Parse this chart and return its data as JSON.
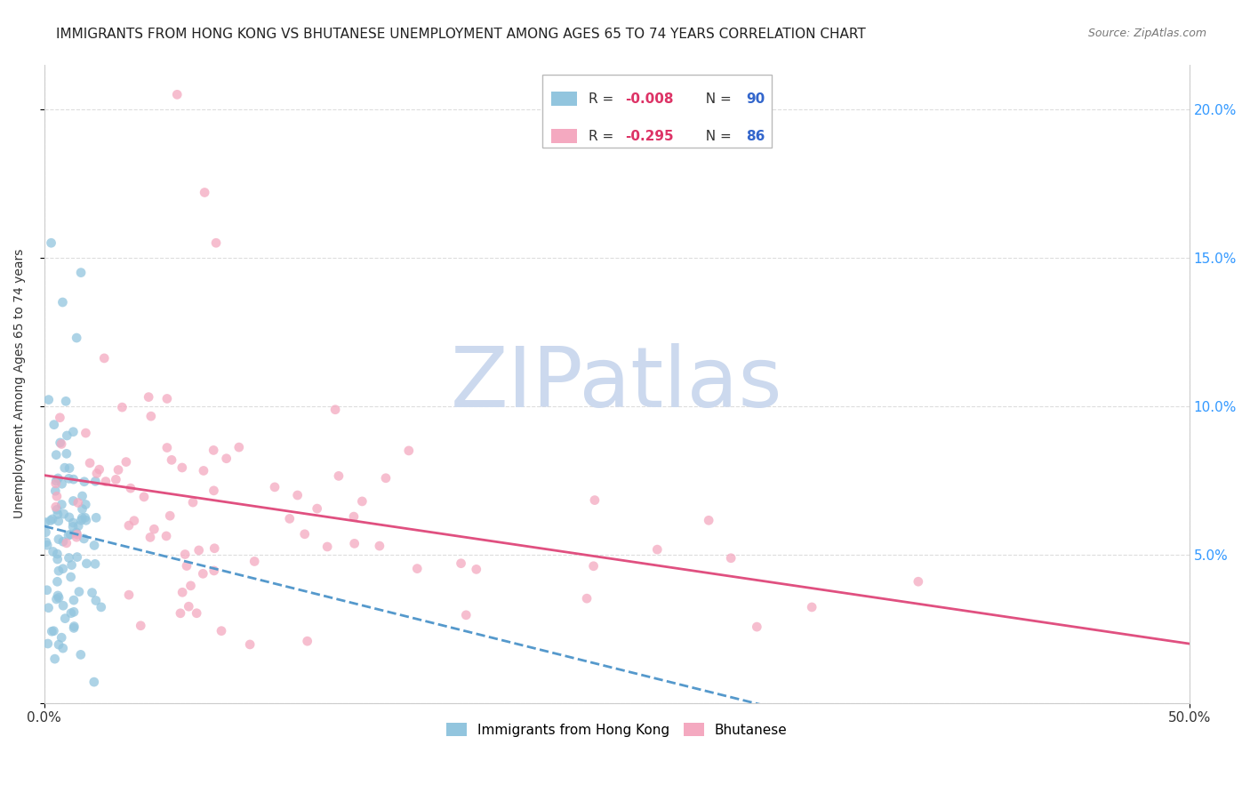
{
  "title": "IMMIGRANTS FROM HONG KONG VS BHUTANESE UNEMPLOYMENT AMONG AGES 65 TO 74 YEARS CORRELATION CHART",
  "source": "Source: ZipAtlas.com",
  "ylabel": "Unemployment Among Ages 65 to 74 years",
  "xlim": [
    0.0,
    0.5
  ],
  "ylim": [
    0.0,
    0.215
  ],
  "xtick_positions": [
    0.0,
    0.5
  ],
  "xticklabels": [
    "0.0%",
    "50.0%"
  ],
  "yticks_right": [
    0.05,
    0.1,
    0.15,
    0.2
  ],
  "yticklabels_right": [
    "5.0%",
    "10.0%",
    "15.0%",
    "20.0%"
  ],
  "hk_color": "#92c5de",
  "bhutan_color": "#f4a9c0",
  "hk_trend_color": "#5599cc",
  "bhutan_trend_color": "#e05080",
  "watermark": "ZIPatlas",
  "watermark_color": "#ccd9ee",
  "background_color": "#ffffff",
  "grid_color": "#dddddd",
  "title_fontsize": 11,
  "hk_R": -0.008,
  "hk_N": 90,
  "bhutan_R": -0.295,
  "bhutan_N": 86,
  "hk_seed": 42,
  "bhutan_seed": 7
}
